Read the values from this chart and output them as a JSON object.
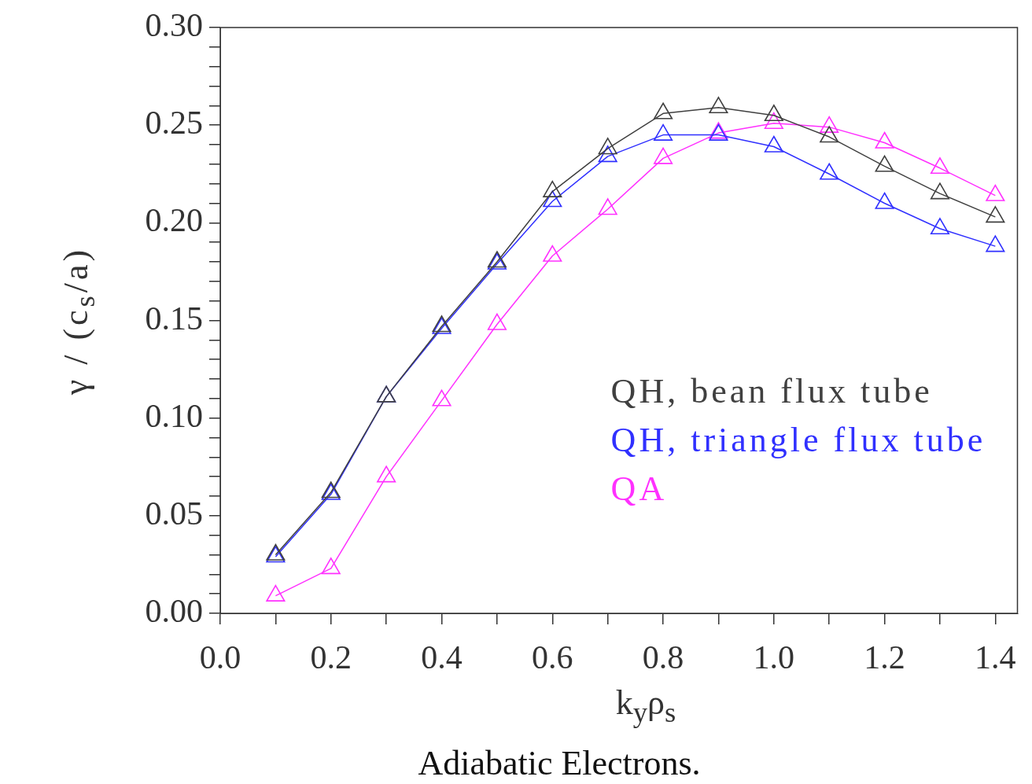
{
  "chart_data": {
    "type": "line",
    "title": "Adiabatic Electrons.",
    "xlabel": "k$_{y}$ρ$_{s}$",
    "ylabel": "γ / (c$_{s}$/a)",
    "x": [
      0.1,
      0.2,
      0.3,
      0.4,
      0.5,
      0.6,
      0.7,
      0.8,
      0.9,
      1.0,
      1.1,
      1.2,
      1.3,
      1.4
    ],
    "series": [
      {
        "name": "QH, bean flux tube",
        "color": "#404040",
        "values": [
          0.03,
          0.062,
          0.111,
          0.147,
          0.18,
          0.216,
          0.238,
          0.256,
          0.259,
          0.255,
          0.244,
          0.229,
          0.215,
          0.203
        ]
      },
      {
        "name": "QH, triangle flux tube",
        "color": "#3030ff",
        "values": [
          0.029,
          0.061,
          0.111,
          0.146,
          0.179,
          0.211,
          0.234,
          0.245,
          0.245,
          0.239,
          0.225,
          0.21,
          0.197,
          0.188
        ]
      },
      {
        "name": "QA",
        "color": "#ff30ff",
        "values": [
          0.009,
          0.023,
          0.07,
          0.109,
          0.148,
          0.183,
          0.207,
          0.233,
          0.246,
          0.251,
          0.249,
          0.241,
          0.228,
          0.214
        ]
      }
    ],
    "xlim": [
      0,
      1.44
    ],
    "ylim": [
      0,
      0.3
    ],
    "xticks": [
      {
        "value": 0,
        "label": "0.0"
      },
      {
        "value": 0.1,
        "label": null
      },
      {
        "value": 0.2,
        "label": "0.2"
      },
      {
        "value": 0.3,
        "label": null
      },
      {
        "value": 0.4,
        "label": "0.4"
      },
      {
        "value": 0.5,
        "label": null
      },
      {
        "value": 0.6,
        "label": "0.6"
      },
      {
        "value": 0.7,
        "label": null
      },
      {
        "value": 0.8,
        "label": "0.8"
      },
      {
        "value": 0.9,
        "label": null
      },
      {
        "value": 1.0,
        "label": "1.0"
      },
      {
        "value": 1.1,
        "label": null
      },
      {
        "value": 1.2,
        "label": "1.2"
      },
      {
        "value": 1.3,
        "label": null
      },
      {
        "value": 1.4,
        "label": "1.4"
      }
    ],
    "yticks": [
      {
        "value": 0,
        "label": "0.00"
      },
      {
        "value": 0.01,
        "label": null
      },
      {
        "value": 0.02,
        "label": null
      },
      {
        "value": 0.03,
        "label": null
      },
      {
        "value": 0.04,
        "label": null
      },
      {
        "value": 0.05,
        "label": "0.05"
      },
      {
        "value": 0.06,
        "label": null
      },
      {
        "value": 0.07,
        "label": null
      },
      {
        "value": 0.08,
        "label": null
      },
      {
        "value": 0.09,
        "label": null
      },
      {
        "value": 0.1,
        "label": "0.10"
      },
      {
        "value": 0.11,
        "label": null
      },
      {
        "value": 0.12,
        "label": null
      },
      {
        "value": 0.13,
        "label": null
      },
      {
        "value": 0.14,
        "label": null
      },
      {
        "value": 0.15,
        "label": "0.15"
      },
      {
        "value": 0.16,
        "label": null
      },
      {
        "value": 0.17,
        "label": null
      },
      {
        "value": 0.18,
        "label": null
      },
      {
        "value": 0.19,
        "label": null
      },
      {
        "value": 0.2,
        "label": "0.20"
      },
      {
        "value": 0.21,
        "label": null
      },
      {
        "value": 0.22,
        "label": null
      },
      {
        "value": 0.23,
        "label": null
      },
      {
        "value": 0.24,
        "label": null
      },
      {
        "value": 0.25,
        "label": "0.25"
      },
      {
        "value": 0.26,
        "label": null
      },
      {
        "value": 0.27,
        "label": null
      },
      {
        "value": 0.28,
        "label": null
      },
      {
        "value": 0.29,
        "label": null
      },
      {
        "value": 0.3,
        "label": "0.30"
      }
    ],
    "legend": "right",
    "marker": "triangle",
    "line_style": "solid"
  }
}
